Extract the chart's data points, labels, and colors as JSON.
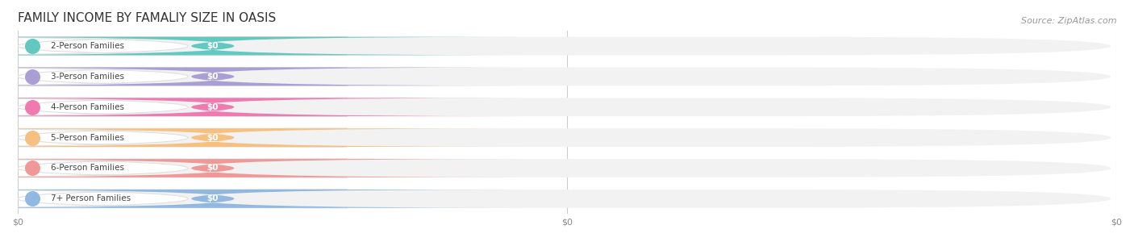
{
  "title": "FAMILY INCOME BY FAMALIY SIZE IN OASIS",
  "source": "Source: ZipAtlas.com",
  "categories": [
    "2-Person Families",
    "3-Person Families",
    "4-Person Families",
    "5-Person Families",
    "6-Person Families",
    "7+ Person Families"
  ],
  "values": [
    0,
    0,
    0,
    0,
    0,
    0
  ],
  "bar_colors": [
    "#62c9c0",
    "#a99fd4",
    "#f07ab0",
    "#f5c080",
    "#f09898",
    "#90b8e0"
  ],
  "background_color": "#ffffff",
  "bar_bg_color": "#f2f2f2",
  "label_color": "#444444",
  "value_label_color": "#ffffff",
  "title_color": "#333333",
  "source_color": "#999999",
  "tick_label": "$0",
  "figwidth": 14.06,
  "figheight": 3.05,
  "dpi": 100
}
